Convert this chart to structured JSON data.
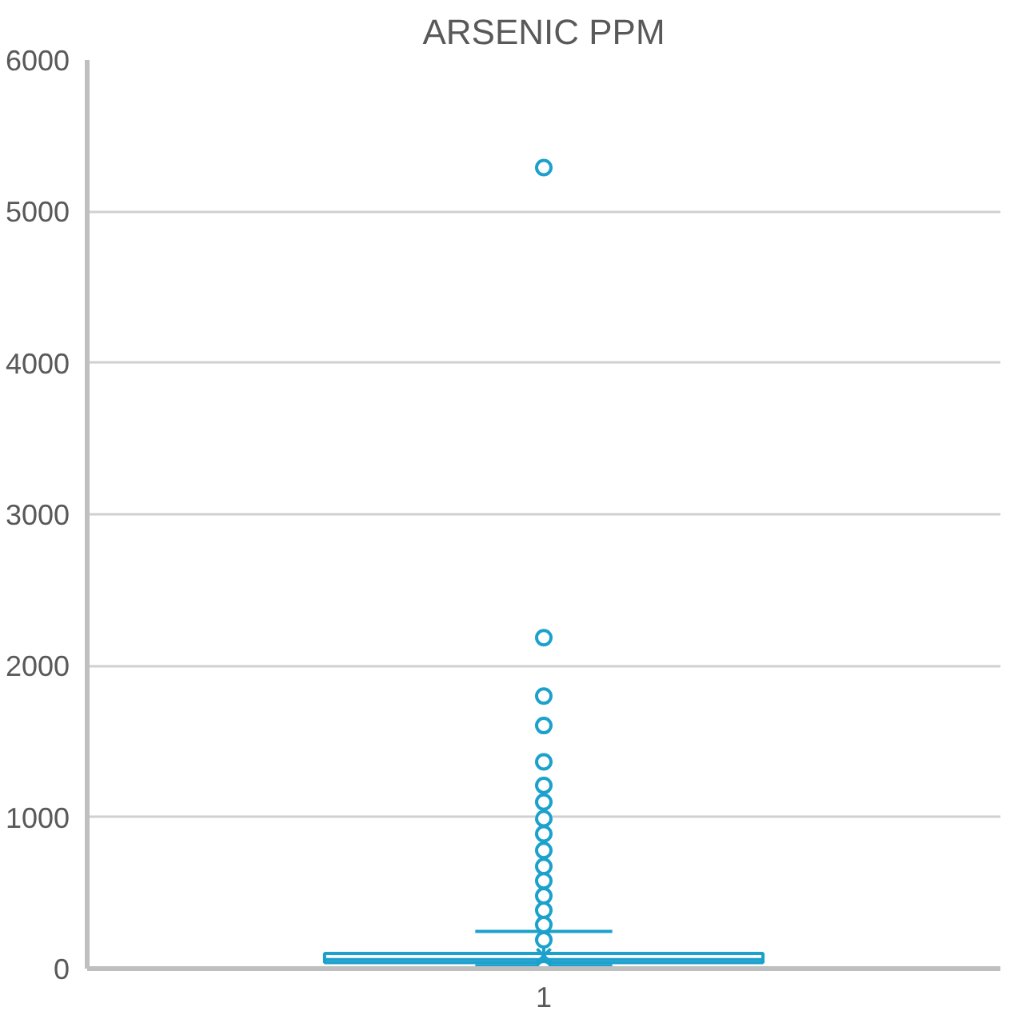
{
  "chart_data": {
    "type": "box",
    "title": "ARSENIC PPM",
    "categories": [
      "1"
    ],
    "series": [
      {
        "color": "#1ba1cc",
        "boxes": [
          {
            "low": 20,
            "q1": 40,
            "median": 60,
            "q3": 100,
            "high": 245,
            "mean": 85,
            "outliers": [
              5290,
              2185,
              1800,
              1605,
              1365,
              1210,
              1100,
              990,
              890,
              780,
              675,
              580,
              480,
              385,
              290,
              190,
              0
            ]
          }
        ]
      }
    ],
    "ylim": [
      0,
      6000
    ],
    "yticks": [
      0,
      1000,
      2000,
      3000,
      4000,
      5000,
      6000
    ],
    "grid": "y",
    "marker": "circle"
  }
}
